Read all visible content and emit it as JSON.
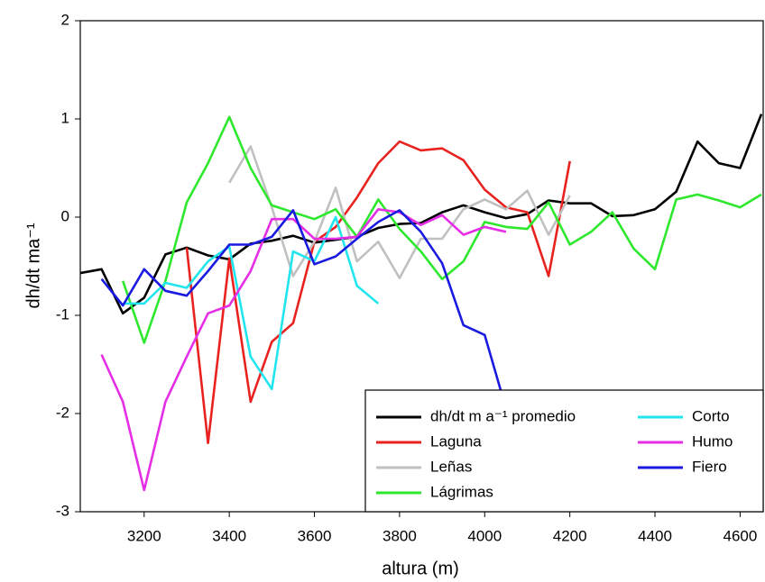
{
  "chart_data": {
    "type": "line",
    "xlabel": "altura (m)",
    "ylabel": "dh/dt ma⁻¹",
    "x": [
      3050,
      3100,
      3150,
      3200,
      3250,
      3300,
      3350,
      3400,
      3450,
      3500,
      3550,
      3600,
      3650,
      3700,
      3750,
      3800,
      3850,
      3900,
      3950,
      4000,
      4050,
      4100,
      4150,
      4200,
      4250,
      4300,
      4350,
      4400,
      4450,
      4500,
      4550,
      4600,
      4650
    ],
    "xlim": [
      3050,
      4650
    ],
    "xticks": [
      3200,
      3400,
      3600,
      3800,
      4000,
      4200,
      4400,
      4600
    ],
    "ylim": [
      -3,
      2
    ],
    "yticks": [
      -3,
      -2,
      -1,
      0,
      1,
      2
    ],
    "legend": "lower-right",
    "series": [
      {
        "name": "dh/dt m a⁻¹ promedio",
        "color": "#000000",
        "values": [
          -0.57,
          -0.53,
          -0.98,
          -0.82,
          -0.38,
          -0.31,
          -0.39,
          -0.43,
          -0.27,
          -0.24,
          -0.19,
          -0.26,
          -0.23,
          -0.2,
          -0.11,
          -0.07,
          -0.06,
          0.05,
          0.12,
          0.05,
          -0.01,
          0.03,
          0.17,
          0.14,
          0.14,
          0.01,
          0.02,
          0.08,
          0.26,
          0.77,
          0.55,
          0.5,
          1.05
        ]
      },
      {
        "name": "Laguna",
        "color": "#e8231f",
        "values": [
          null,
          null,
          null,
          null,
          null,
          -0.31,
          -2.3,
          -0.42,
          -1.88,
          -1.27,
          -1.08,
          -0.25,
          -0.1,
          0.2,
          0.55,
          0.77,
          0.68,
          0.7,
          0.58,
          0.28,
          0.1,
          0.05,
          -0.6,
          0.57,
          null,
          null,
          null,
          null,
          null,
          null,
          null,
          null,
          null
        ]
      },
      {
        "name": "Leñas",
        "color": "#c0c0c0",
        "values": [
          null,
          null,
          null,
          null,
          null,
          null,
          null,
          0.35,
          0.72,
          0.1,
          -0.6,
          -0.25,
          0.3,
          -0.45,
          -0.25,
          -0.62,
          -0.22,
          -0.22,
          0.08,
          0.18,
          0.08,
          0.27,
          -0.18,
          0.22,
          null,
          null,
          null,
          null,
          null,
          null,
          null,
          null,
          null
        ]
      },
      {
        "name": "Lágrimas",
        "color": "#2ee82e",
        "values": [
          null,
          null,
          -0.65,
          -1.28,
          -0.65,
          0.15,
          0.55,
          1.02,
          0.5,
          0.12,
          0.05,
          -0.02,
          0.08,
          -0.2,
          0.18,
          -0.12,
          -0.35,
          -0.63,
          -0.45,
          -0.05,
          -0.1,
          -0.12,
          0.15,
          -0.28,
          -0.15,
          0.05,
          -0.32,
          -0.53,
          0.18,
          0.23,
          0.17,
          0.1,
          0.23
        ]
      },
      {
        "name": "Corto",
        "color": "#22e5ee",
        "values": [
          null,
          null,
          -0.88,
          -0.88,
          -0.67,
          -0.72,
          -0.45,
          -0.3,
          -1.42,
          -1.75,
          -0.35,
          -0.45,
          0.0,
          -0.7,
          -0.88,
          null,
          null,
          null,
          null,
          null,
          null,
          null,
          null,
          null,
          null,
          null,
          null,
          null,
          null,
          null,
          null,
          null,
          null
        ]
      },
      {
        "name": "Humo",
        "color": "#e52ee5",
        "values": [
          null,
          -1.4,
          -1.88,
          -2.78,
          -1.88,
          -1.42,
          -0.98,
          -0.9,
          -0.55,
          -0.02,
          -0.02,
          -0.22,
          -0.22,
          -0.2,
          0.08,
          0.05,
          -0.08,
          0.02,
          -0.18,
          -0.1,
          -0.15,
          null,
          null,
          null,
          null,
          null,
          null,
          null,
          null,
          null,
          null,
          null,
          null
        ]
      },
      {
        "name": "Fiero",
        "color": "#1a1ae0",
        "values": [
          null,
          -0.63,
          -0.9,
          -0.53,
          -0.75,
          -0.8,
          -0.55,
          -0.28,
          -0.28,
          -0.2,
          0.07,
          -0.48,
          -0.4,
          -0.22,
          -0.05,
          0.07,
          -0.15,
          -0.47,
          -1.1,
          -1.2,
          -1.95,
          null,
          null,
          null,
          null,
          null,
          null,
          null,
          null,
          null,
          null,
          null,
          null
        ]
      }
    ]
  }
}
